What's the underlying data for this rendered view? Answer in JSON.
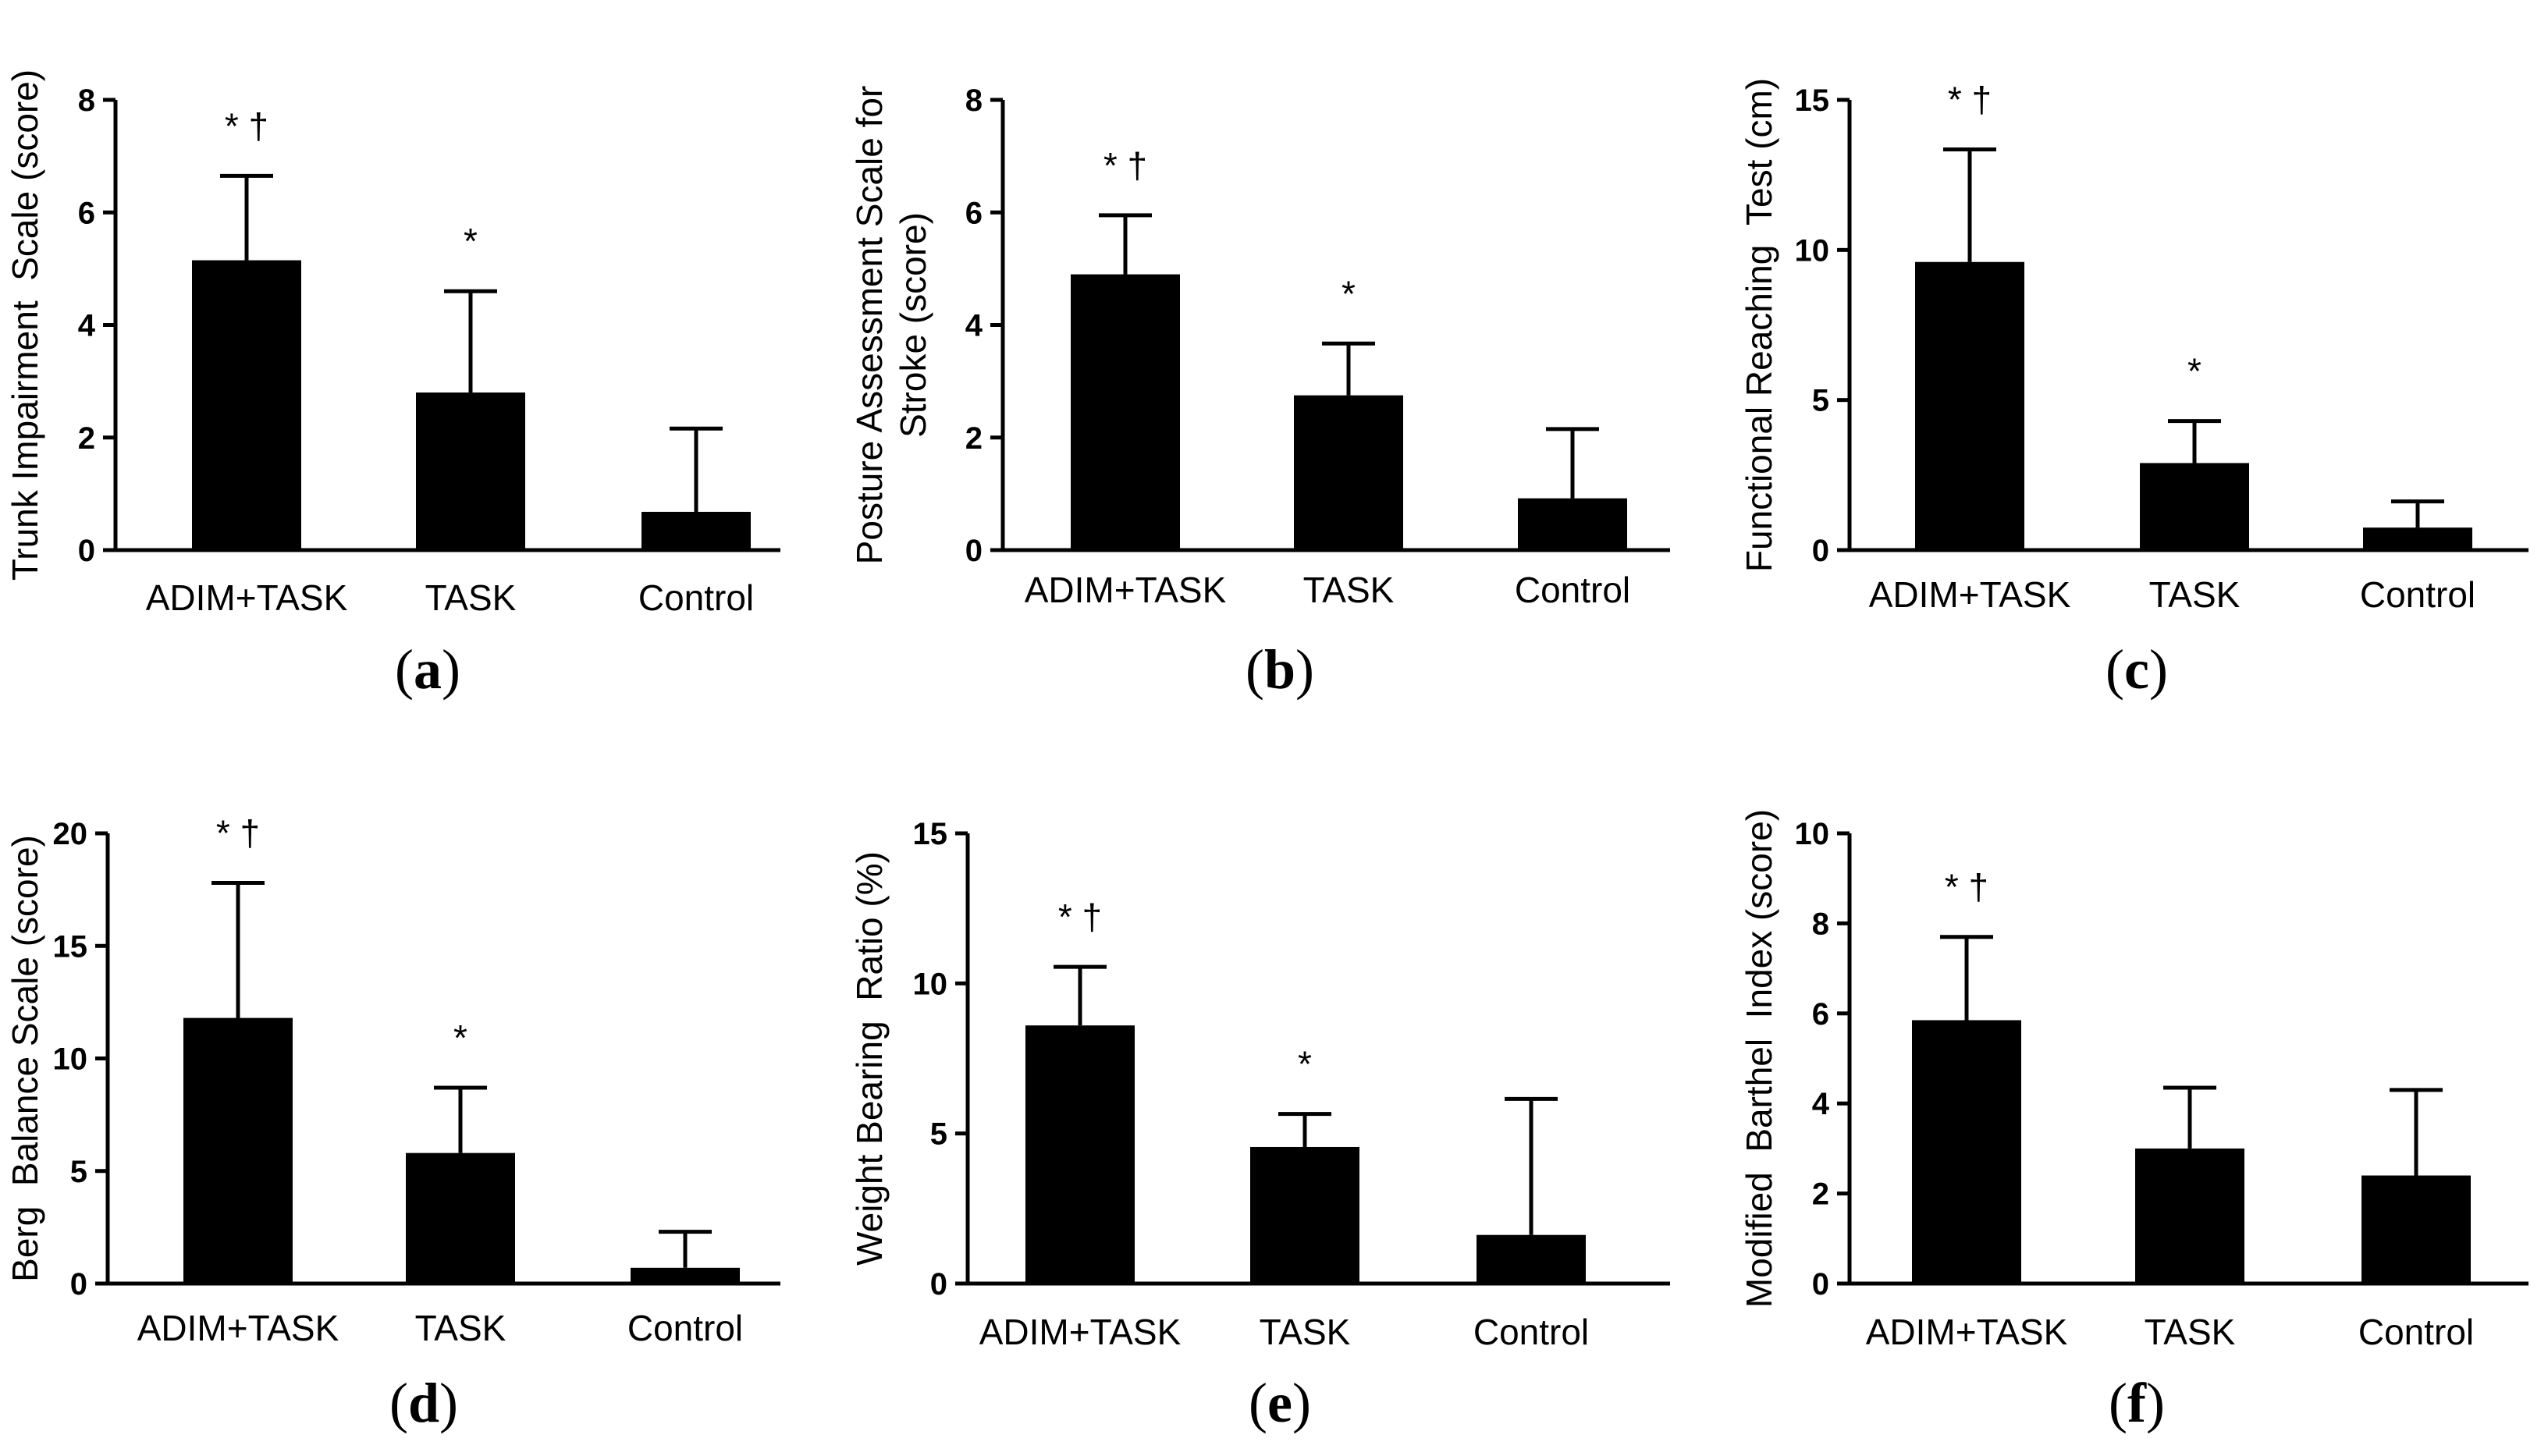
{
  "figure": {
    "type": "multi-panel bar chart"
  },
  "chart_data": [
    {
      "type": "bar",
      "panel_label": "a",
      "ylabel": "Trunk Impairment  Scale (score)",
      "categories": [
        "ADIM+TASK",
        "TASK",
        "Control"
      ],
      "values": [
        5.15,
        2.8,
        0.68
      ],
      "errors": [
        1.5,
        1.8,
        1.48
      ],
      "annotations": [
        "* †",
        "*",
        ""
      ],
      "ylim": [
        0,
        8
      ],
      "yticks": [
        0,
        2,
        4,
        6,
        8
      ],
      "bar_color": "#000000"
    },
    {
      "type": "bar",
      "panel_label": "b",
      "ylabel": "Posture Assessment Scale for Stroke (score)",
      "ylabel_lines": [
        "Posture Assessment Scale for",
        "Stroke (score)"
      ],
      "categories": [
        "ADIM+TASK",
        "TASK",
        "Control"
      ],
      "values": [
        4.9,
        2.75,
        0.92
      ],
      "errors": [
        1.05,
        0.92,
        1.23
      ],
      "annotations": [
        "* †",
        "*",
        ""
      ],
      "ylim": [
        0,
        8
      ],
      "yticks": [
        0,
        2,
        4,
        6,
        8
      ],
      "bar_color": "#000000"
    },
    {
      "type": "bar",
      "panel_label": "c",
      "ylabel": "Functional Reaching  Test (cm)",
      "categories": [
        "ADIM+TASK",
        "TASK",
        "Control"
      ],
      "values": [
        9.6,
        2.9,
        0.75
      ],
      "errors": [
        3.75,
        1.4,
        0.87
      ],
      "annotations": [
        "* †",
        "*",
        ""
      ],
      "ylim": [
        0,
        15
      ],
      "yticks": [
        0,
        5,
        10,
        15
      ],
      "bar_color": "#000000"
    },
    {
      "type": "bar",
      "panel_label": "d",
      "ylabel": "Berg  Balance Scale (score)",
      "categories": [
        "ADIM+TASK",
        "TASK",
        "Control"
      ],
      "values": [
        11.8,
        5.8,
        0.7
      ],
      "errors": [
        6.0,
        2.9,
        1.6
      ],
      "annotations": [
        "* †",
        "*",
        ""
      ],
      "ylim": [
        0,
        20
      ],
      "yticks": [
        0,
        5,
        10,
        15,
        20
      ],
      "bar_color": "#000000"
    },
    {
      "type": "bar",
      "panel_label": "e",
      "ylabel": "Weight Bearing  Ratio (%)",
      "categories": [
        "ADIM+TASK",
        "TASK",
        "Control"
      ],
      "values": [
        8.6,
        4.55,
        1.62
      ],
      "errors": [
        1.95,
        1.1,
        4.53
      ],
      "annotations": [
        "* †",
        "*",
        ""
      ],
      "ylim": [
        0,
        15
      ],
      "yticks": [
        0,
        5,
        10,
        15
      ],
      "bar_color": "#000000"
    },
    {
      "type": "bar",
      "panel_label": "f",
      "ylabel": "Modified  Barthel  Index (score)",
      "categories": [
        "ADIM+TASK",
        "TASK",
        "Control"
      ],
      "values": [
        5.85,
        3.0,
        2.4
      ],
      "errors": [
        1.85,
        1.35,
        1.9
      ],
      "annotations": [
        "* †",
        "",
        ""
      ],
      "ylim": [
        0,
        10
      ],
      "yticks": [
        0,
        2,
        4,
        6,
        8,
        10
      ],
      "bar_color": "#000000"
    }
  ]
}
